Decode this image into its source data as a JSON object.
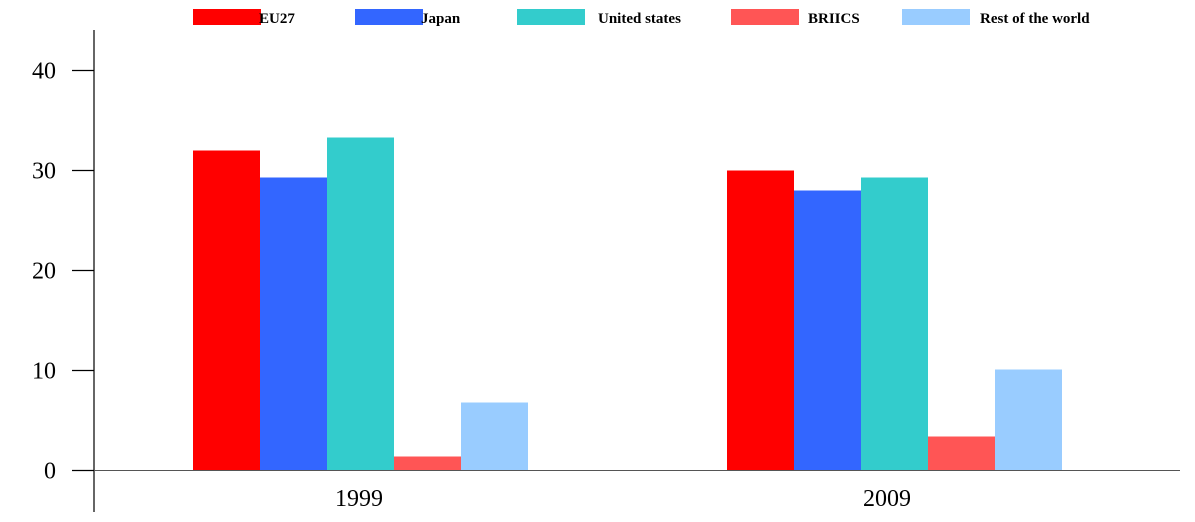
{
  "chart_data": {
    "type": "bar",
    "title": "",
    "xlabel": "",
    "ylabel": "",
    "categories": [
      "1999",
      "2009"
    ],
    "series": [
      {
        "name": "EU27",
        "color": "#ff0000",
        "values": [
          32,
          30
        ]
      },
      {
        "name": "Japan",
        "color": "#3366ff",
        "values": [
          29.3,
          28
        ]
      },
      {
        "name": "United states",
        "color": "#33cccc",
        "values": [
          33.3,
          29.3
        ]
      },
      {
        "name": "BRIICS",
        "color": "#ff5555",
        "values": [
          1.4,
          3.4
        ]
      },
      {
        "name": "Rest of the world",
        "color": "#99ccff",
        "values": [
          6.8,
          10.1
        ]
      }
    ],
    "ylim": [
      0,
      43
    ],
    "yticks": [
      0,
      10,
      20,
      30,
      40
    ],
    "grid": false,
    "legend_position": "top"
  }
}
